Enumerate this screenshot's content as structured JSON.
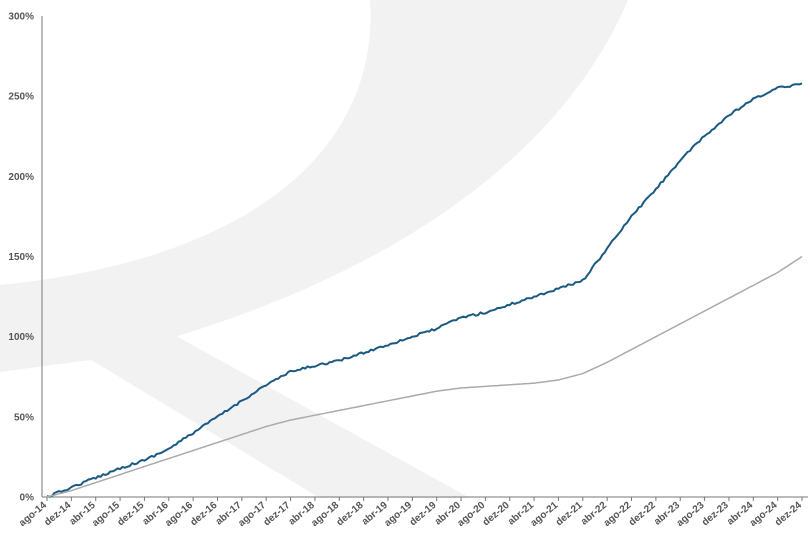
{
  "chart_data": {
    "type": "line",
    "title": "",
    "xlabel": "",
    "ylabel": "",
    "ylim": [
      0,
      300
    ],
    "y_ticks": [
      0,
      50,
      100,
      150,
      200,
      250,
      300
    ],
    "y_tick_labels": [
      "0%",
      "50%",
      "100%",
      "150%",
      "200%",
      "250%",
      "300%"
    ],
    "x_tick_labels": [
      "ago-14",
      "dez-14",
      "abr-15",
      "ago-15",
      "dez-15",
      "abr-16",
      "ago-16",
      "dez-16",
      "abr-17",
      "ago-17",
      "dez-17",
      "abr-18",
      "ago-18",
      "dez-18",
      "abr-19",
      "ago-19",
      "dez-19",
      "abr-20",
      "ago-20",
      "dez-20",
      "abr-21",
      "ago-21",
      "dez-21",
      "abr-22",
      "ago-22",
      "dez-22",
      "abr-23",
      "ago-23",
      "dez-23",
      "abr-24",
      "ago-24",
      "dez-24"
    ],
    "grid": false,
    "legend": "none",
    "series": [
      {
        "color": "#1a5a82",
        "x": [
          "ago-14",
          "dez-14",
          "abr-15",
          "ago-15",
          "dez-15",
          "abr-16",
          "ago-16",
          "dez-16",
          "abr-17",
          "ago-17",
          "dez-17",
          "abr-18",
          "ago-18",
          "dez-18",
          "abr-19",
          "ago-19",
          "dez-19",
          "abr-20",
          "ago-20",
          "dez-20",
          "abr-21",
          "ago-21",
          "dez-21",
          "abr-22",
          "ago-22",
          "dez-22",
          "abr-23",
          "ago-23",
          "dez-23",
          "abr-24",
          "ago-24",
          "dez-24"
        ],
        "values": [
          0,
          6,
          12,
          18,
          23,
          30,
          40,
          50,
          60,
          70,
          78,
          82,
          85,
          90,
          95,
          100,
          105,
          112,
          115,
          120,
          125,
          130,
          135,
          155,
          175,
          192,
          210,
          225,
          238,
          248,
          255,
          258
        ]
      },
      {
        "color": "#aaaaaa",
        "x": [
          "ago-14",
          "dez-14",
          "abr-15",
          "ago-15",
          "dez-15",
          "abr-16",
          "ago-16",
          "dez-16",
          "abr-17",
          "ago-17",
          "dez-17",
          "abr-18",
          "ago-18",
          "dez-18",
          "abr-19",
          "ago-19",
          "dez-19",
          "abr-20",
          "ago-20",
          "dez-20",
          "abr-21",
          "ago-21",
          "dez-21",
          "abr-22",
          "ago-22",
          "dez-22",
          "abr-23",
          "ago-23",
          "dez-23",
          "abr-24",
          "ago-24",
          "dez-24"
        ],
        "values": [
          0,
          4,
          9,
          14,
          19,
          24,
          29,
          34,
          39,
          44,
          48,
          51,
          54,
          57,
          60,
          63,
          66,
          68,
          69,
          70,
          71,
          73,
          77,
          84,
          92,
          100,
          108,
          116,
          124,
          132,
          140,
          150
        ]
      }
    ]
  }
}
